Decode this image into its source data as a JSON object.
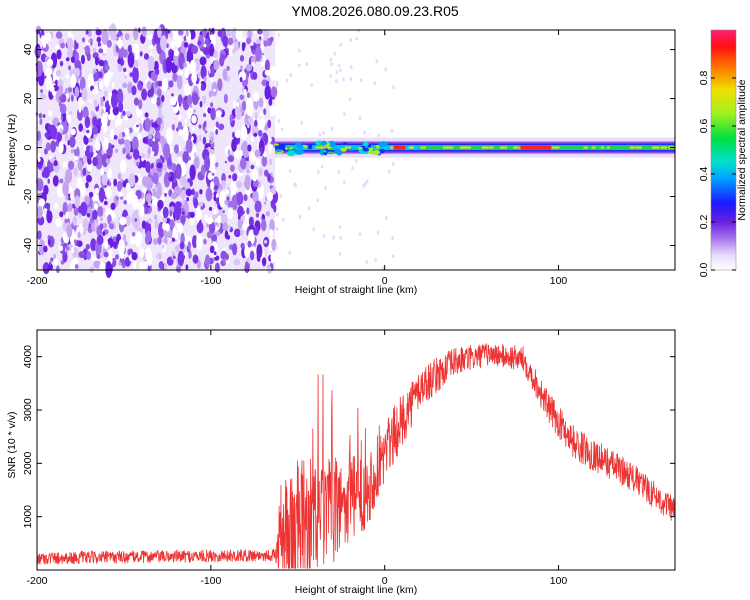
{
  "title": "YM08.2026.080.09.23.R05",
  "chart_data": [
    {
      "type": "heatmap",
      "name": "spectrogram",
      "xlabel": "Height of straight line (km)",
      "ylabel": "Frequency (Hz)",
      "xlim": [
        -200,
        167
      ],
      "ylim": [
        -50,
        48
      ],
      "xticks": [
        -200,
        -100,
        0,
        100
      ],
      "yticks": [
        -40,
        -20,
        0,
        20,
        40
      ],
      "colorbar": {
        "label": "Normalized spectral amplitude",
        "range": [
          0,
          1
        ],
        "ticks": [
          0.0,
          0.2,
          0.4,
          0.6,
          0.8
        ]
      },
      "features": {
        "noise_region_x": [
          -200,
          -63
        ],
        "signal_band_x": [
          -63,
          167
        ],
        "signal_band_center_hz": 0,
        "strong_segments_x": [
          [
            5,
            12
          ],
          [
            78,
            96
          ]
        ]
      }
    },
    {
      "type": "line",
      "name": "snr",
      "xlabel": "Height of straight line (km)",
      "ylabel": "SNR (10 * v/v)",
      "xlim": [
        -200,
        167
      ],
      "ylim": [
        0,
        4500
      ],
      "xticks": [
        -200,
        -100,
        0,
        100
      ],
      "yticks": [
        1000,
        2000,
        3000,
        4000
      ],
      "series": [
        {
          "name": "SNR",
          "color": "#ee3333",
          "envelope_x": [
            -200,
            -63,
            -55,
            -30,
            -10,
            0,
            20,
            40,
            60,
            80,
            95,
            110,
            140,
            167
          ],
          "envelope_y": [
            220,
            280,
            700,
            1100,
            1500,
            2200,
            3400,
            3900,
            4050,
            3950,
            3000,
            2350,
            1800,
            1100
          ],
          "noise_amplitude_y": [
            120,
            120,
            1400,
            1000,
            700,
            600,
            400,
            280,
            220,
            250,
            300,
            320,
            280,
            250
          ]
        }
      ]
    }
  ],
  "colors": {
    "signal_line": "#ee3333",
    "axes": "#000000"
  }
}
